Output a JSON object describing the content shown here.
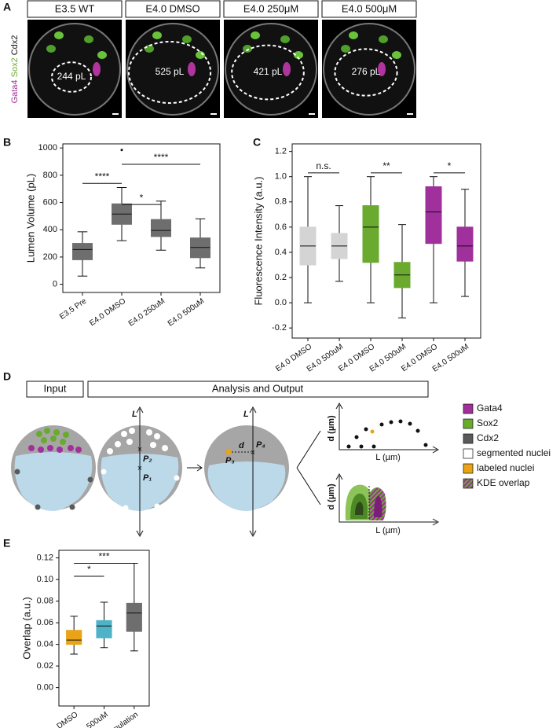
{
  "panel_labels": [
    "A",
    "B",
    "C",
    "D",
    "E"
  ],
  "panel_a": {
    "stain_labels": [
      "Gata4",
      "Sox2",
      "Cdx2"
    ],
    "columns": [
      {
        "header": "E3.5 WT",
        "volume": "244 pL"
      },
      {
        "header": "E4.0 DMSO",
        "volume": "525 pL"
      },
      {
        "header": "E4.0 250μM",
        "volume": "421 pL"
      },
      {
        "header": "E4.0 500μM",
        "volume": "276 pL"
      }
    ]
  },
  "chart_data": [
    {
      "type": "box",
      "ylabel": "Lumen Volume (pL)",
      "ylim": [
        -60,
        1030
      ],
      "yticks": [
        0,
        200,
        400,
        600,
        800,
        1000
      ],
      "categories": [
        "E3.5 Pre",
        "E4.0 DMSO",
        "E4.0 250uM",
        "E4.0 500uM"
      ],
      "boxes": [
        {
          "low": 60,
          "q1": 180,
          "median": 255,
          "q3": 300,
          "high": 385,
          "color": "#6e6e6e"
        },
        {
          "low": 320,
          "q1": 440,
          "median": 515,
          "q3": 590,
          "high": 710,
          "color": "#6e6e6e",
          "outliers": [
            985
          ]
        },
        {
          "low": 250,
          "q1": 350,
          "median": 395,
          "q3": 475,
          "high": 610,
          "color": "#6e6e6e"
        },
        {
          "low": 120,
          "q1": 195,
          "median": 270,
          "q3": 340,
          "high": 480,
          "color": "#6e6e6e"
        }
      ],
      "annotations": [
        {
          "text": "****",
          "from": 0,
          "to": 1,
          "y": 740
        },
        {
          "text": "*",
          "from": 1,
          "to": 2,
          "y": 585
        },
        {
          "text": "****",
          "from": 1,
          "to": 3,
          "y": 880
        }
      ]
    },
    {
      "type": "box",
      "ylabel": "Fluorescence Intensity (a.u.)",
      "ylim": [
        -0.28,
        1.26
      ],
      "yticks": [
        {
          "value": -0.2,
          "label": "-0.2"
        },
        {
          "value": 0,
          "label": "0.0"
        },
        0.2,
        0.4,
        0.6,
        0.8,
        {
          "value": 1,
          "label": "1.0"
        },
        1.2
      ],
      "categories": [
        "E4.0 DMSO",
        "E4.0 500uM",
        "E4.0 DMSO",
        "E4.0 500uM",
        "E4.0 DMSO",
        "E4.0 500uM"
      ],
      "boxes": [
        {
          "low": 0,
          "q1": 0.3,
          "median": 0.45,
          "q3": 0.6,
          "high": 1.0,
          "color": "#d4d4d4"
        },
        {
          "low": 0.17,
          "q1": 0.35,
          "median": 0.45,
          "q3": 0.55,
          "high": 0.77,
          "color": "#d4d4d4"
        },
        {
          "low": 0,
          "q1": 0.32,
          "median": 0.6,
          "q3": 0.77,
          "high": 1.0,
          "color": "#6aaa2e"
        },
        {
          "low": -0.12,
          "q1": 0.12,
          "median": 0.22,
          "q3": 0.32,
          "high": 0.62,
          "color": "#6aaa2e"
        },
        {
          "low": 0,
          "q1": 0.47,
          "median": 0.72,
          "q3": 0.92,
          "high": 1.0,
          "color": "#a0309c"
        },
        {
          "low": 0.05,
          "q1": 0.33,
          "median": 0.45,
          "q3": 0.6,
          "high": 0.9,
          "color": "#a0309c"
        }
      ],
      "annotations": [
        {
          "text": "n.s.",
          "from": 0,
          "to": 1,
          "y": 1.03
        },
        {
          "text": "**",
          "from": 2,
          "to": 3,
          "y": 1.03
        },
        {
          "text": "*",
          "from": 4,
          "to": 5,
          "y": 1.03
        }
      ]
    },
    {
      "type": "box",
      "ylabel": "Overlap (a.u.)",
      "ylim": [
        -0.017,
        0.127
      ],
      "yticks": [
        {
          "value": 0,
          "label": "0.00"
        },
        {
          "value": 0.02,
          "label": "0.02"
        },
        {
          "value": 0.04,
          "label": "0.04"
        },
        {
          "value": 0.06,
          "label": "0.06"
        },
        {
          "value": 0.08,
          "label": "0.08"
        },
        {
          "value": 0.1,
          "label": "0.10"
        },
        {
          "value": 0.12,
          "label": "0.12"
        }
      ],
      "categories": [
        "DMSO",
        "500uM",
        "Simulation"
      ],
      "boxes": [
        {
          "low": 0.031,
          "q1": 0.04,
          "median": 0.044,
          "q3": 0.053,
          "high": 0.066,
          "color": "#e8a317"
        },
        {
          "low": 0.037,
          "q1": 0.046,
          "median": 0.057,
          "q3": 0.062,
          "high": 0.079,
          "color": "#4fb3c8"
        },
        {
          "low": 0.034,
          "q1": 0.052,
          "median": 0.069,
          "q3": 0.078,
          "high": 0.115,
          "color": "#6e6e6e"
        }
      ],
      "annotations": [
        {
          "text": "*",
          "from": 0,
          "to": 1,
          "y": 0.103
        },
        {
          "text": "***",
          "from": 0,
          "to": 2,
          "y": 0.115
        }
      ]
    }
  ],
  "panel_d": {
    "headers": [
      "Input",
      "Analysis and Output"
    ],
    "axis_L": [
      "L",
      "L"
    ],
    "points": [
      "P₂",
      "P₁",
      "P₃",
      "P₄"
    ],
    "distance": "d",
    "plots": [
      {
        "ylabel": "d (µm)",
        "xlabel": "L (µm)"
      },
      {
        "ylabel": "d (µm)",
        "xlabel": "L (µm)"
      }
    ],
    "legend": [
      {
        "label": "Gata4",
        "color": "#a0309c"
      },
      {
        "label": "Sox2",
        "color": "#6aaa2e"
      },
      {
        "label": "Cdx2",
        "color": "#5a5a5a"
      },
      {
        "label": "segmented nuclei",
        "color": "#ffffff"
      },
      {
        "label": "labeled nuclei",
        "color": "#e8a317"
      },
      {
        "label": "KDE overlap",
        "color": "#a0309c"
      }
    ]
  }
}
